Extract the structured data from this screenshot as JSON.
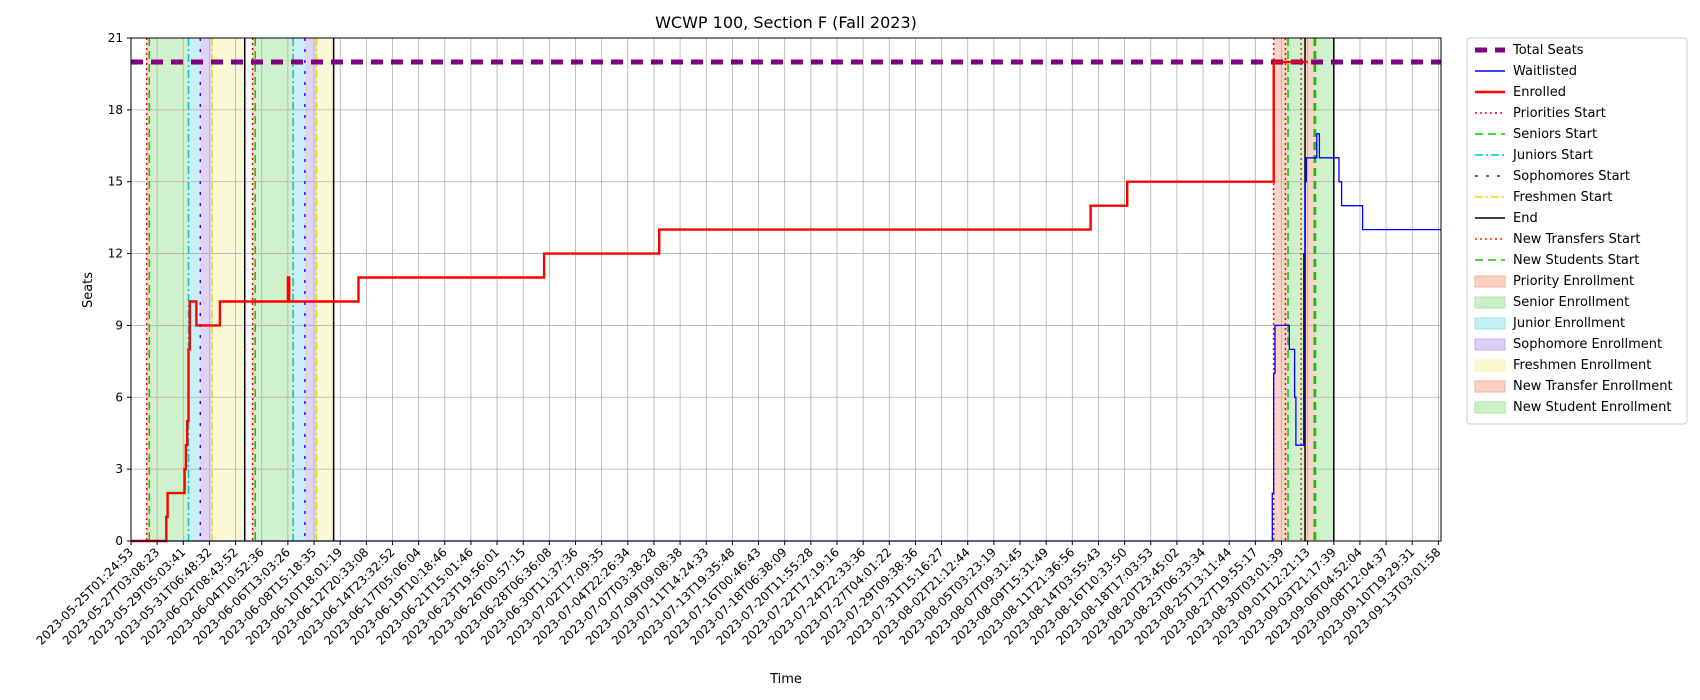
{
  "chart_data": {
    "type": "line",
    "title": "WCWP 100, Section F (Fall 2023)",
    "xlabel": "Time",
    "ylabel": "Seats",
    "ylim": [
      0,
      21
    ],
    "yticks": [
      0,
      3,
      6,
      9,
      12,
      15,
      18,
      21
    ],
    "grid": true,
    "legend_position": "outside-right",
    "x_ticks": [
      "2023-05-25T01:24:53",
      "2023-05-27T03:08:23",
      "2023-05-29T05:03:41",
      "2023-05-31T06:48:32",
      "2023-06-02T08:43:52",
      "2023-06-04T10:52:36",
      "2023-06-06T13:03:26",
      "2023-06-08T15:18:35",
      "2023-06-10T18:01:19",
      "2023-06-12T20:33:08",
      "2023-06-14T23:32:52",
      "2023-06-17T05:06:04",
      "2023-06-19T10:18:46",
      "2023-06-21T15:01:46",
      "2023-06-23T19:56:01",
      "2023-06-26T00:57:15",
      "2023-06-28T06:36:08",
      "2023-06-30T11:37:36",
      "2023-07-02T17:09:35",
      "2023-07-04T22:26:34",
      "2023-07-07T03:38:28",
      "2023-07-09T09:08:38",
      "2023-07-11T14:24:33",
      "2023-07-13T19:35:48",
      "2023-07-16T00:46:43",
      "2023-07-18T06:38:09",
      "2023-07-20T11:55:28",
      "2023-07-22T17:19:16",
      "2023-07-24T22:33:36",
      "2023-07-27T04:01:22",
      "2023-07-29T09:38:36",
      "2023-07-31T15:16:27",
      "2023-08-02T21:12:44",
      "2023-08-05T03:23:19",
      "2023-08-07T09:31:45",
      "2023-08-09T15:31:49",
      "2023-08-11T21:36:56",
      "2023-08-14T03:55:43",
      "2023-08-16T10:33:50",
      "2023-08-18T17:03:53",
      "2023-08-20T23:45:02",
      "2023-08-23T06:33:34",
      "2023-08-25T13:11:44",
      "2023-08-27T19:55:17",
      "2023-08-30T03:01:39",
      "2023-09-01T12:21:13",
      "2023-09-03T21:17:39",
      "2023-09-06T04:52:04",
      "2023-09-08T12:04:37",
      "2023-09-10T19:29:31",
      "2023-09-13T03:01:58"
    ],
    "x_index_range": [
      0,
      50.1
    ],
    "series": [
      {
        "name": "Total Seats",
        "color": "#800080",
        "style": "dashed-thick",
        "points": [
          [
            0,
            20
          ],
          [
            50.1,
            20
          ]
        ]
      },
      {
        "name": "Enrolled",
        "color": "#ff0000",
        "style": "solid",
        "points": [
          [
            0,
            0
          ],
          [
            1.35,
            0
          ],
          [
            1.35,
            1
          ],
          [
            1.4,
            1
          ],
          [
            1.4,
            2
          ],
          [
            2.05,
            2
          ],
          [
            2.05,
            3
          ],
          [
            2.1,
            3
          ],
          [
            2.1,
            4
          ],
          [
            2.15,
            4
          ],
          [
            2.15,
            5
          ],
          [
            2.2,
            5
          ],
          [
            2.2,
            8
          ],
          [
            2.25,
            8
          ],
          [
            2.25,
            10
          ],
          [
            2.5,
            10
          ],
          [
            2.5,
            9
          ],
          [
            3.4,
            9
          ],
          [
            3.4,
            10
          ],
          [
            6.0,
            10
          ],
          [
            6.0,
            11
          ],
          [
            6.05,
            11
          ],
          [
            6.05,
            10
          ],
          [
            8.7,
            10
          ],
          [
            8.7,
            11
          ],
          [
            15.8,
            11
          ],
          [
            15.8,
            12
          ],
          [
            20.2,
            12
          ],
          [
            20.2,
            13
          ],
          [
            36.7,
            13
          ],
          [
            36.7,
            14
          ],
          [
            38.1,
            14
          ],
          [
            38.1,
            15
          ],
          [
            43.7,
            15
          ],
          [
            43.7,
            20
          ],
          [
            45.0,
            20
          ]
        ]
      },
      {
        "name": "Waitlisted",
        "color": "#0000ff",
        "style": "solid",
        "points": [
          [
            0,
            0
          ],
          [
            43.65,
            0
          ],
          [
            43.65,
            2
          ],
          [
            43.7,
            2
          ],
          [
            43.7,
            7
          ],
          [
            43.75,
            7
          ],
          [
            43.75,
            9
          ],
          [
            44.3,
            9
          ],
          [
            44.3,
            8
          ],
          [
            44.5,
            8
          ],
          [
            44.5,
            6
          ],
          [
            44.55,
            6
          ],
          [
            44.55,
            4
          ],
          [
            44.85,
            4
          ],
          [
            44.85,
            12
          ],
          [
            44.9,
            12
          ],
          [
            44.9,
            15
          ],
          [
            44.95,
            15
          ],
          [
            44.95,
            16
          ],
          [
            45.35,
            16
          ],
          [
            45.35,
            17
          ],
          [
            45.45,
            17
          ],
          [
            45.45,
            16
          ],
          [
            46.2,
            16
          ],
          [
            46.2,
            15
          ],
          [
            46.3,
            15
          ],
          [
            46.3,
            14
          ],
          [
            47.1,
            14
          ],
          [
            47.1,
            13
          ],
          [
            50.1,
            13
          ]
        ]
      }
    ],
    "phase_lines": [
      {
        "name": "Priorities Start",
        "color": "#ff0000",
        "style": "dotted",
        "x": [
          0.6,
          4.65,
          43.7,
          44.15
        ]
      },
      {
        "name": "Seniors Start",
        "color": "#00cc00",
        "style": "dashed",
        "x": [
          0.7,
          4.75,
          44.25,
          45.3
        ]
      },
      {
        "name": "Juniors Start",
        "color": "#00bfcf",
        "style": "dashdot",
        "x": [
          2.2,
          6.2
        ]
      },
      {
        "name": "Sophomores Start",
        "color": "#5500ff",
        "style": "dashdot-sparse",
        "x": [
          2.65,
          6.65
        ]
      },
      {
        "name": "Freshmen Start",
        "color": "#e0e000",
        "style": "dashdot",
        "x": [
          3.1,
          7.1
        ]
      },
      {
        "name": "End",
        "color": "#000000",
        "style": "solid",
        "x": [
          4.35,
          7.75,
          44.9,
          46.0
        ]
      },
      {
        "name": "New Transfers Start",
        "color": "#ff2200",
        "style": "dotted",
        "x": [
          44.75
        ]
      },
      {
        "name": "New Students Start",
        "color": "#22bb00",
        "style": "dashed",
        "x": [
          45.25
        ]
      }
    ],
    "phase_regions": [
      {
        "name": "Priority Enrollment",
        "color": "#f4b29a",
        "spans": [
          [
            0.6,
            0.7
          ],
          [
            4.65,
            4.75
          ],
          [
            43.7,
            44.25
          ]
        ]
      },
      {
        "name": "Senior Enrollment",
        "color": "#a8e6a0",
        "spans": [
          [
            0.7,
            2.2
          ],
          [
            4.75,
            6.2
          ],
          [
            44.25,
            44.9
          ]
        ]
      },
      {
        "name": "Junior Enrollment",
        "color": "#9ae6ee",
        "spans": [
          [
            2.2,
            2.65
          ],
          [
            6.2,
            6.65
          ]
        ]
      },
      {
        "name": "Sophomore Enrollment",
        "color": "#c4aef0",
        "spans": [
          [
            2.65,
            3.1
          ],
          [
            6.65,
            7.1
          ]
        ]
      },
      {
        "name": "Freshmen Enrollment",
        "color": "#f6f4b4",
        "spans": [
          [
            3.1,
            4.35
          ],
          [
            7.1,
            7.75
          ]
        ]
      },
      {
        "name": "New Transfer Enrollment",
        "color": "#f4b29a",
        "spans": [
          [
            44.9,
            45.3
          ]
        ]
      },
      {
        "name": "New Student Enrollment",
        "color": "#a8e6a0",
        "spans": [
          [
            45.3,
            46.0
          ]
        ]
      }
    ],
    "legend": [
      {
        "label": "Total Seats",
        "kind": "line",
        "color": "#800080",
        "style": "dashed-thick"
      },
      {
        "label": "Waitlisted",
        "kind": "line",
        "color": "#0000ff",
        "style": "solid"
      },
      {
        "label": "Enrolled",
        "kind": "line",
        "color": "#ff0000",
        "style": "solid-thick"
      },
      {
        "label": "Priorities Start",
        "kind": "line",
        "color": "#ff0000",
        "style": "dotted"
      },
      {
        "label": "Seniors Start",
        "kind": "line",
        "color": "#00cc00",
        "style": "dashed"
      },
      {
        "label": "Juniors Start",
        "kind": "line",
        "color": "#00bfcf",
        "style": "dashdot"
      },
      {
        "label": "Sophomores Start",
        "kind": "line",
        "color": "#5500ff",
        "style": "dashdot-sparse"
      },
      {
        "label": "Freshmen Start",
        "kind": "line",
        "color": "#e0e000",
        "style": "dashdot"
      },
      {
        "label": "End",
        "kind": "line",
        "color": "#000000",
        "style": "solid"
      },
      {
        "label": "New Transfers Start",
        "kind": "line",
        "color": "#ff2200",
        "style": "dotted"
      },
      {
        "label": "New Students Start",
        "kind": "line",
        "color": "#22bb00",
        "style": "dashed"
      },
      {
        "label": "Priority Enrollment",
        "kind": "patch",
        "color": "#f4b29a"
      },
      {
        "label": "Senior Enrollment",
        "kind": "patch",
        "color": "#a8e6a0"
      },
      {
        "label": "Junior Enrollment",
        "kind": "patch",
        "color": "#9ae6ee"
      },
      {
        "label": "Sophomore Enrollment",
        "kind": "patch",
        "color": "#c4aef0"
      },
      {
        "label": "Freshmen Enrollment",
        "kind": "patch",
        "color": "#f6f4b4"
      },
      {
        "label": "New Transfer Enrollment",
        "kind": "patch",
        "color": "#f4b29a"
      },
      {
        "label": "New Student Enrollment",
        "kind": "patch",
        "color": "#a8e6a0"
      }
    ]
  }
}
